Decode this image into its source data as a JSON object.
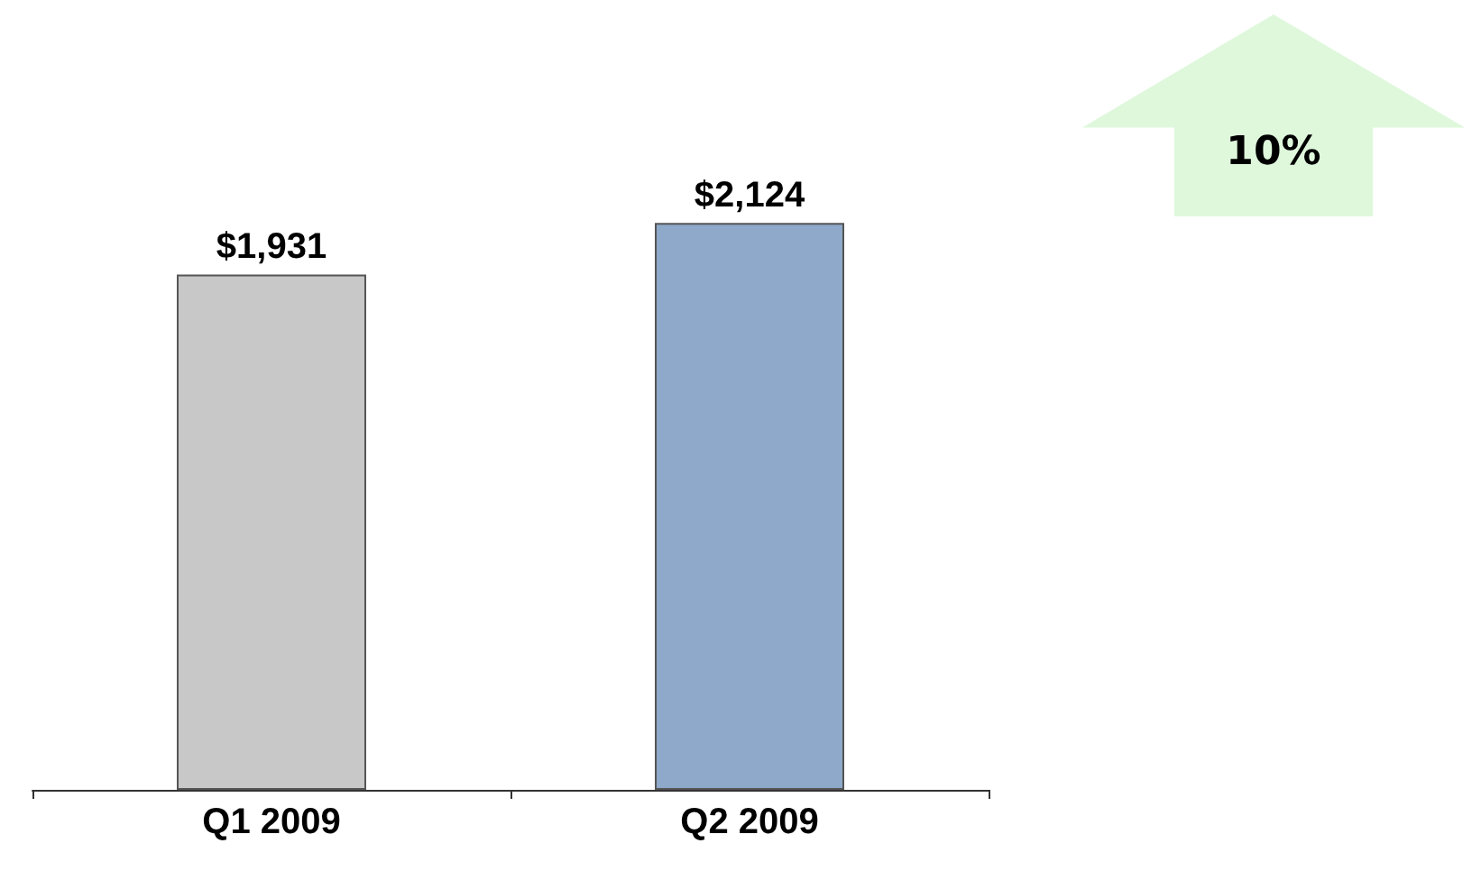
{
  "chart_data": {
    "type": "bar",
    "categories": [
      "Q1 2009",
      "Q2 2009"
    ],
    "values": [
      1931,
      2124
    ],
    "value_labels": [
      "$1,931",
      "$2,124"
    ],
    "colors": [
      "#c8c8c8",
      "#8ea9c9"
    ],
    "grid": false,
    "annotations": [
      "10%"
    ]
  }
}
